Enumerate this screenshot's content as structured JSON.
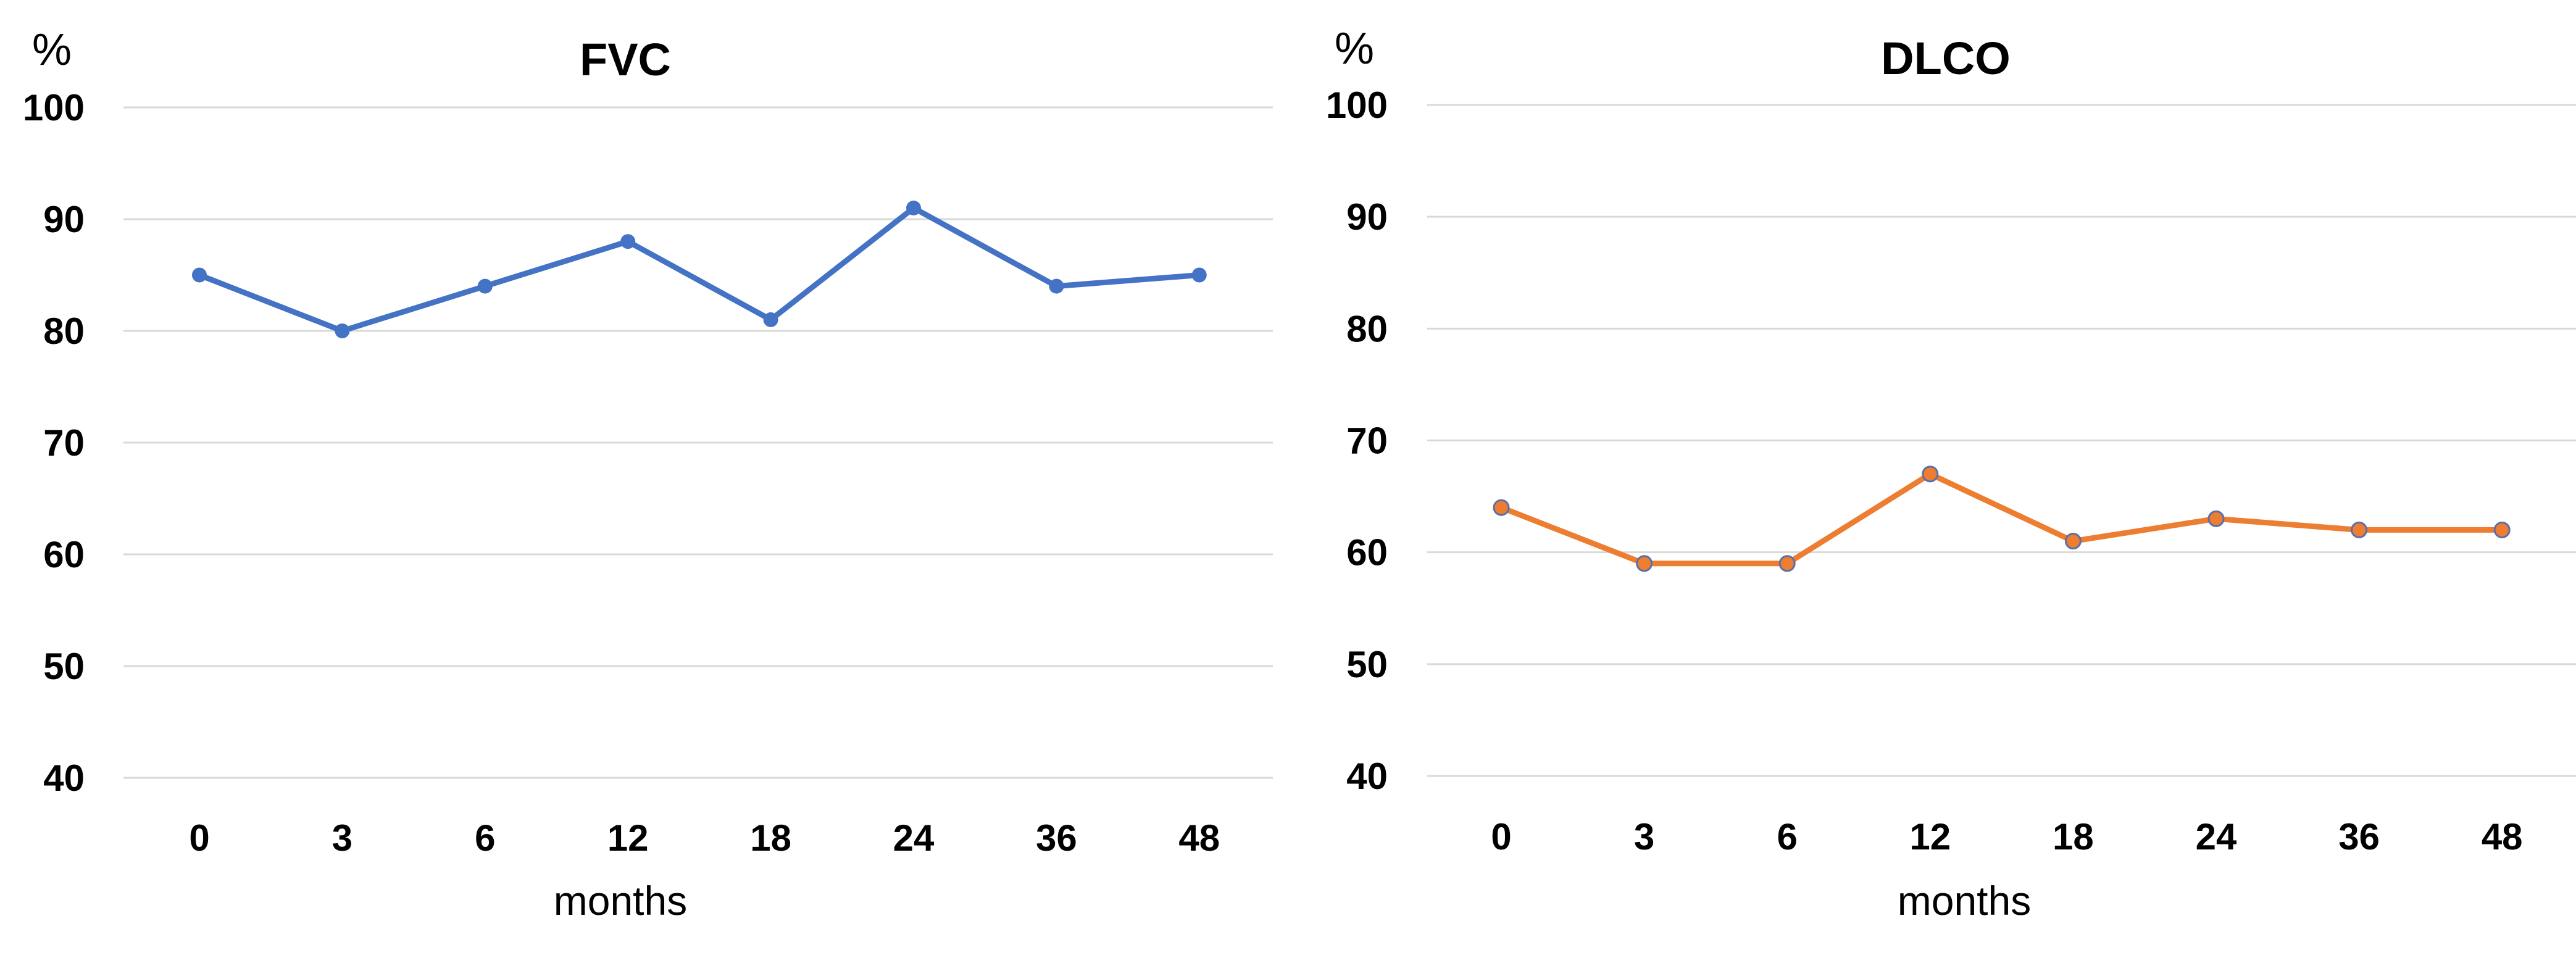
{
  "chart_data": [
    {
      "type": "line",
      "title": "FVC",
      "unit_label": "%",
      "xlabel": "months",
      "ylabel": "",
      "categories": [
        "0",
        "3",
        "6",
        "12",
        "18",
        "24",
        "36",
        "48"
      ],
      "series": [
        {
          "values": [
            85,
            80,
            84,
            88,
            81,
            91,
            84,
            85
          ],
          "color": "#4472c4"
        }
      ],
      "ylim": [
        40,
        100
      ],
      "yticks": [
        "100",
        "90",
        "80",
        "70",
        "60",
        "50",
        "40"
      ],
      "grid": true,
      "legend": "none"
    },
    {
      "type": "line",
      "title": "DLCO",
      "unit_label": "%",
      "xlabel": "months",
      "ylabel": "",
      "categories": [
        "0",
        "3",
        "6",
        "12",
        "18",
        "24",
        "36",
        "48"
      ],
      "series": [
        {
          "values": [
            64,
            59,
            59,
            67,
            61,
            63,
            62,
            62
          ],
          "color": "#ed7d31"
        }
      ],
      "ylim": [
        40,
        100
      ],
      "yticks": [
        "100",
        "90",
        "80",
        "70",
        "60",
        "50",
        "40"
      ],
      "grid": true,
      "legend": "none"
    }
  ]
}
